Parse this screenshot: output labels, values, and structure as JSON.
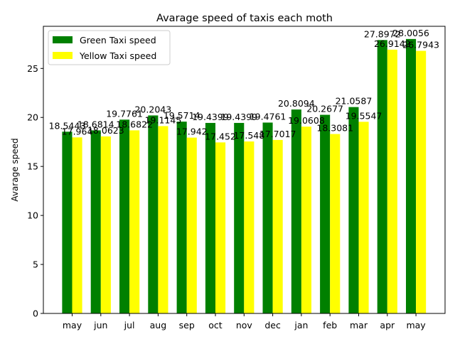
{
  "chart_data": {
    "type": "bar",
    "title": "Avarage speed of taxis each moth",
    "xlabel": "",
    "ylabel": "Avarage speed",
    "ylim": [
      0,
      29.3
    ],
    "yticks": [
      "0",
      "5",
      "10",
      "15",
      "20",
      "25"
    ],
    "categories": [
      "may",
      "jun",
      "jul",
      "aug",
      "sep",
      "oct",
      "nov",
      "dec",
      "jan",
      "feb",
      "mar",
      "apr",
      "may"
    ],
    "legend_position": "top-left",
    "grid": false,
    "series": [
      {
        "name": "Green Taxi speed",
        "color": "#008000",
        "values": [
          18.5443,
          18.6814,
          19.7761,
          20.2043,
          19.5714,
          19.4399,
          19.4399,
          19.4761,
          20.8094,
          20.2677,
          21.0587,
          27.8972,
          28.0056
        ],
        "labels": [
          "18.5443",
          "18.6814",
          "19.7761",
          "20.2043",
          "19.5714",
          "19.4399",
          "19.4399",
          "19.4761",
          "20.8094",
          "20.2677",
          "21.0587",
          "27.8972",
          "28.0056"
        ]
      },
      {
        "name": "Yellow Taxi speed",
        "color": "#ffff00",
        "values": [
          17.964,
          18.0623,
          18.6822,
          19.1145,
          17.942,
          17.452,
          17.548,
          17.7017,
          19.0608,
          18.3081,
          19.5547,
          26.9142,
          26.7943
        ],
        "labels": [
          "17.964",
          "18.0623",
          "18.6822",
          "19.1145",
          "17.942",
          "17.452",
          "17.548",
          "17.7017",
          "19.0608",
          "18.3081",
          "19.5547",
          "26.9142",
          "26.7943"
        ]
      }
    ]
  }
}
